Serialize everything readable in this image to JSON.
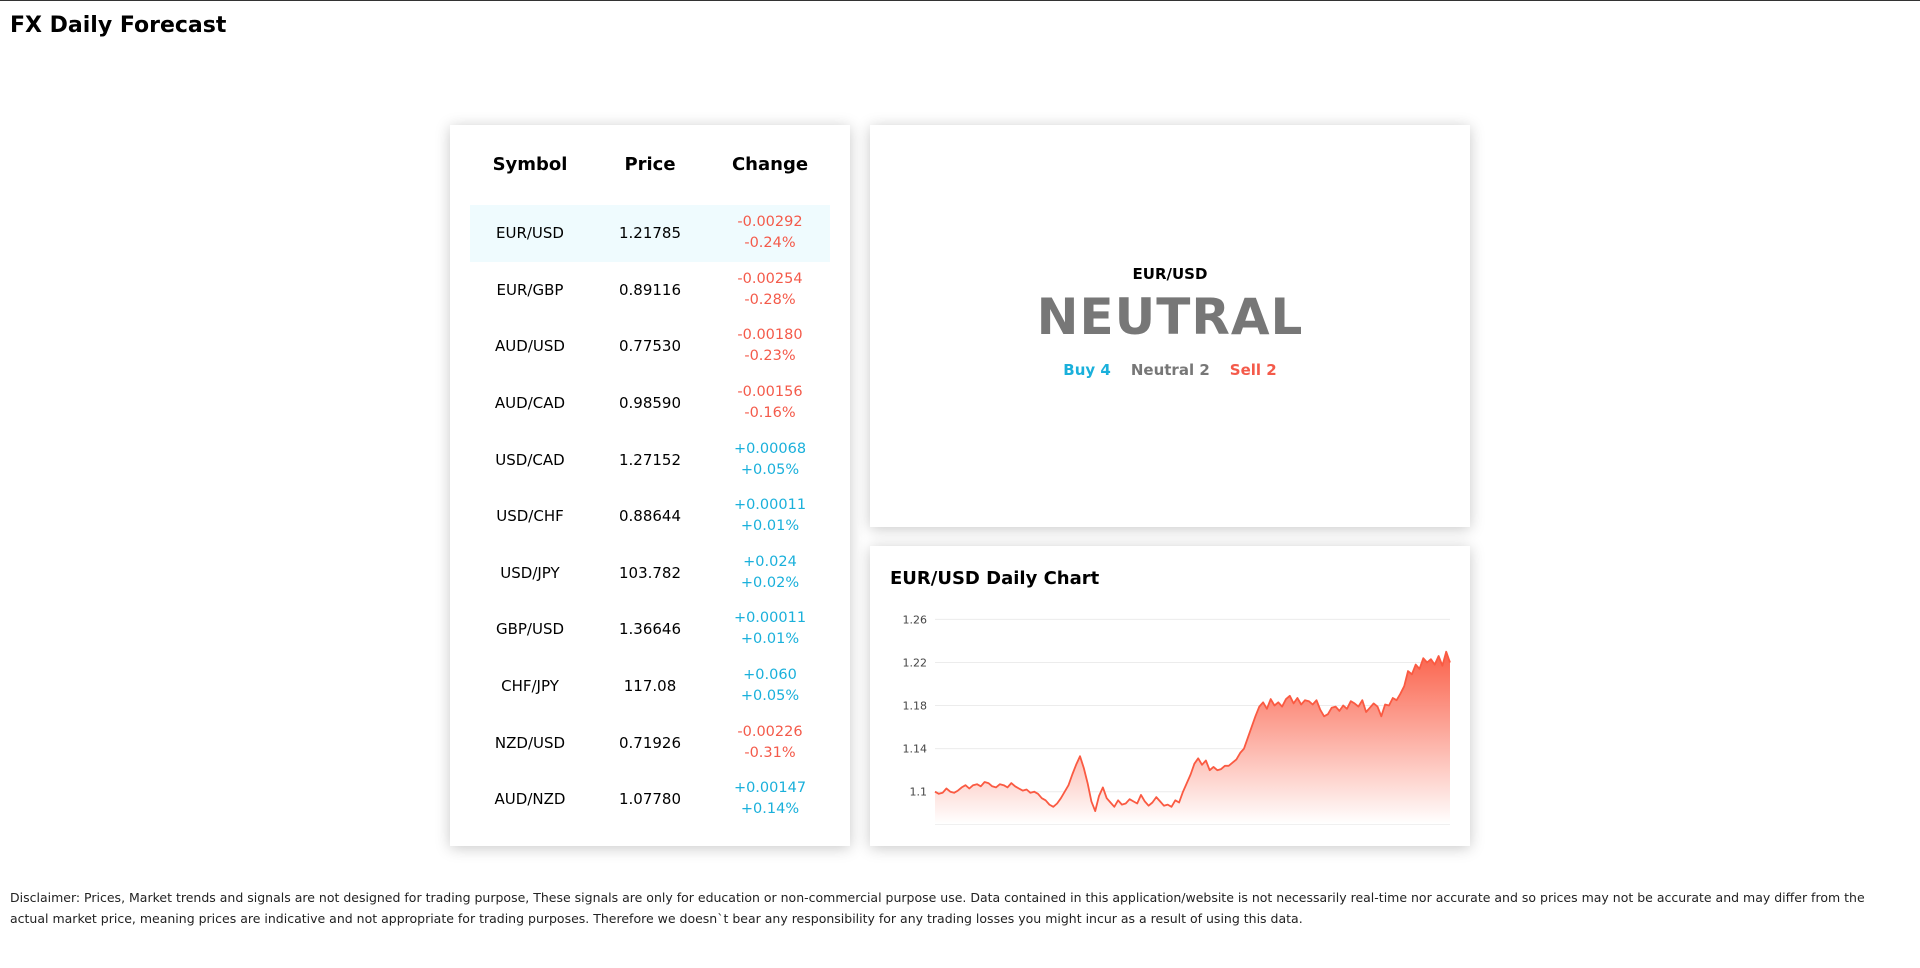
{
  "page": {
    "title": "FX Daily Forecast"
  },
  "table": {
    "headers": {
      "symbol": "Symbol",
      "price": "Price",
      "change": "Change"
    },
    "rows": [
      {
        "symbol": "EUR/USD",
        "price": "1.21785",
        "change": "-0.00292",
        "percent": "-0.24%",
        "direction": "down",
        "selected": true
      },
      {
        "symbol": "EUR/GBP",
        "price": "0.89116",
        "change": "-0.00254",
        "percent": "-0.28%",
        "direction": "down"
      },
      {
        "symbol": "AUD/USD",
        "price": "0.77530",
        "change": "-0.00180",
        "percent": "-0.23%",
        "direction": "down"
      },
      {
        "symbol": "AUD/CAD",
        "price": "0.98590",
        "change": "-0.00156",
        "percent": "-0.16%",
        "direction": "down"
      },
      {
        "symbol": "USD/CAD",
        "price": "1.27152",
        "change": "+0.00068",
        "percent": "+0.05%",
        "direction": "up"
      },
      {
        "symbol": "USD/CHF",
        "price": "0.88644",
        "change": "+0.00011",
        "percent": "+0.01%",
        "direction": "up"
      },
      {
        "symbol": "USD/JPY",
        "price": "103.782",
        "change": "+0.024",
        "percent": "+0.02%",
        "direction": "up"
      },
      {
        "symbol": "GBP/USD",
        "price": "1.36646",
        "change": "+0.00011",
        "percent": "+0.01%",
        "direction": "up"
      },
      {
        "symbol": "CHF/JPY",
        "price": "117.08",
        "change": "+0.060",
        "percent": "+0.05%",
        "direction": "up"
      },
      {
        "symbol": "NZD/USD",
        "price": "0.71926",
        "change": "-0.00226",
        "percent": "-0.31%",
        "direction": "down"
      },
      {
        "symbol": "AUD/NZD",
        "price": "1.07780",
        "change": "+0.00147",
        "percent": "+0.14%",
        "direction": "up"
      }
    ]
  },
  "signal": {
    "symbol": "EUR/USD",
    "summary": "NEUTRAL",
    "buy": "Buy 4",
    "neutral": "Neutral 2",
    "sell": "Sell 2"
  },
  "chart": {
    "title": "EUR/USD Daily Chart"
  },
  "chart_data": {
    "type": "area",
    "title": "EUR/USD Daily Chart",
    "xlabel": "",
    "ylabel": "",
    "ylim": [
      1.07,
      1.265
    ],
    "yticks": [
      1.1,
      1.14,
      1.18,
      1.22,
      1.26
    ],
    "grid": true,
    "legend": "none",
    "colors": {
      "line": "#fa5a42",
      "fill_top": "#fa5a42",
      "fill_bottom": "#ffffff"
    },
    "values": [
      1.1,
      1.098,
      1.099,
      1.103,
      1.1,
      1.099,
      1.101,
      1.104,
      1.106,
      1.103,
      1.106,
      1.107,
      1.105,
      1.109,
      1.108,
      1.105,
      1.104,
      1.107,
      1.106,
      1.104,
      1.108,
      1.105,
      1.103,
      1.101,
      1.102,
      1.099,
      1.1,
      1.098,
      1.094,
      1.092,
      1.088,
      1.086,
      1.089,
      1.094,
      1.1,
      1.106,
      1.116,
      1.125,
      1.133,
      1.122,
      1.108,
      1.091,
      1.082,
      1.096,
      1.104,
      1.094,
      1.09,
      1.086,
      1.092,
      1.088,
      1.089,
      1.093,
      1.091,
      1.089,
      1.097,
      1.091,
      1.087,
      1.09,
      1.095,
      1.091,
      1.087,
      1.088,
      1.086,
      1.092,
      1.09,
      1.1,
      1.108,
      1.116,
      1.126,
      1.131,
      1.125,
      1.129,
      1.12,
      1.123,
      1.12,
      1.121,
      1.124,
      1.124,
      1.127,
      1.13,
      1.136,
      1.14,
      1.15,
      1.16,
      1.17,
      1.179,
      1.183,
      1.177,
      1.186,
      1.18,
      1.183,
      1.179,
      1.186,
      1.189,
      1.182,
      1.187,
      1.181,
      1.185,
      1.184,
      1.181,
      1.185,
      1.176,
      1.17,
      1.172,
      1.178,
      1.179,
      1.175,
      1.18,
      1.177,
      1.184,
      1.182,
      1.179,
      1.185,
      1.174,
      1.178,
      1.182,
      1.179,
      1.17,
      1.181,
      1.18,
      1.187,
      1.185,
      1.191,
      1.198,
      1.212,
      1.209,
      1.218,
      1.214,
      1.224,
      1.22,
      1.223,
      1.218,
      1.226,
      1.217,
      1.23,
      1.22
    ]
  },
  "disclaimer": "Disclaimer: Prices, Market trends and signals are not designed for trading purpose, These signals are only for education or non-commercial purpose use. Data contained in this application/website is not necessarily real-time nor accurate and so prices may not be accurate and may differ from the actual market price, meaning prices are indicative and not appropriate for trading purposes. Therefore we doesn`t bear any responsibility for any trading losses you might incur as a result of using this data."
}
